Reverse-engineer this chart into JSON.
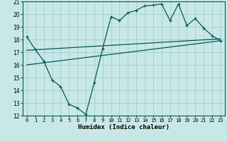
{
  "xlabel": "Humidex (Indice chaleur)",
  "background_color": "#c8e8e8",
  "grid_color": "#a8d0d0",
  "line_color": "#005858",
  "xlim": [
    -0.5,
    23.5
  ],
  "ylim": [
    12,
    21
  ],
  "xticks": [
    0,
    1,
    2,
    3,
    4,
    5,
    6,
    7,
    8,
    9,
    10,
    11,
    12,
    13,
    14,
    15,
    16,
    17,
    18,
    19,
    20,
    21,
    22,
    23
  ],
  "yticks": [
    12,
    13,
    14,
    15,
    16,
    17,
    18,
    19,
    20,
    21
  ],
  "main_x": [
    0,
    1,
    2,
    3,
    4,
    5,
    6,
    7,
    8,
    9,
    10,
    11,
    12,
    13,
    14,
    15,
    16,
    17,
    18,
    19,
    20,
    21,
    22,
    23
  ],
  "main_y": [
    18.2,
    17.2,
    16.3,
    14.8,
    14.3,
    12.9,
    12.6,
    12.1,
    14.6,
    17.3,
    19.8,
    19.5,
    20.1,
    20.3,
    20.65,
    20.7,
    20.8,
    19.5,
    20.8,
    19.1,
    19.65,
    18.9,
    18.3,
    17.9
  ],
  "line2_x": [
    0,
    23
  ],
  "line2_y": [
    17.15,
    18.05
  ],
  "line3_x": [
    0,
    23
  ],
  "line3_y": [
    16.0,
    17.9
  ]
}
